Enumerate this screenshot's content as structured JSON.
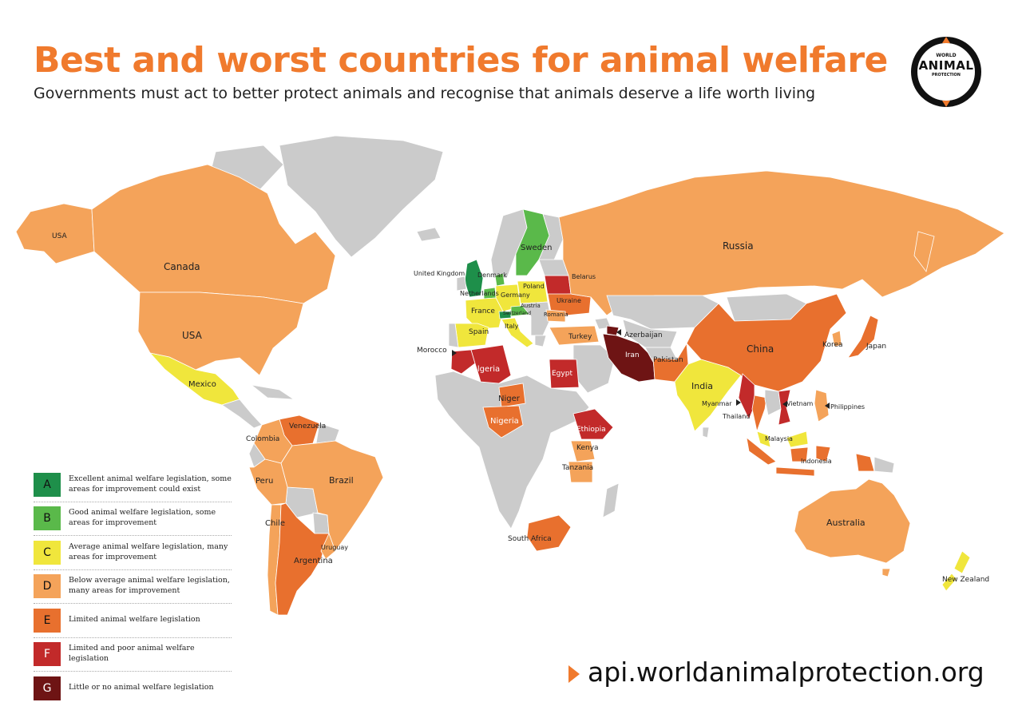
{
  "header": {
    "title": "Best and worst countries for animal welfare",
    "subtitle": "Governments must act to better protect animals and recognise that animals deserve a life worth living"
  },
  "logo": {
    "line1": "WORLD",
    "line2": "ANIMAL",
    "line3": "PROTECTION"
  },
  "grade_colors": {
    "A": "#1e8f4a",
    "B": "#5ab94a",
    "C": "#f0e63c",
    "D": "#f4a35a",
    "E": "#e8702e",
    "F": "#c22a2a",
    "G": "#6e1414",
    "none": "#cbcbcb"
  },
  "legend": [
    {
      "grade": "A",
      "text": "Excellent animal welfare legislation, some areas for improvement could exist"
    },
    {
      "grade": "B",
      "text": "Good animal welfare legislation, some areas for improvement"
    },
    {
      "grade": "C",
      "text": "Average animal welfare legislation, many areas for improvement"
    },
    {
      "grade": "D",
      "text": "Below average animal welfare legislation, many areas for improvement"
    },
    {
      "grade": "E",
      "text": "Limited animal welfare legislation"
    },
    {
      "grade": "F",
      "text": "Limited and poor animal welfare legislation"
    },
    {
      "grade": "G",
      "text": "Little or no animal welfare legislation"
    }
  ],
  "countries": [
    {
      "name": "USA",
      "grade": "D"
    },
    {
      "name": "Canada",
      "grade": "D"
    },
    {
      "name": "Mexico",
      "grade": "C"
    },
    {
      "name": "Venezuela",
      "grade": "E"
    },
    {
      "name": "Colombia",
      "grade": "D"
    },
    {
      "name": "Peru",
      "grade": "D"
    },
    {
      "name": "Brazil",
      "grade": "D"
    },
    {
      "name": "Chile",
      "grade": "D"
    },
    {
      "name": "Argentina",
      "grade": "E"
    },
    {
      "name": "Uruguay",
      "grade": "D"
    },
    {
      "name": "United Kingdom",
      "grade": "A"
    },
    {
      "name": "Denmark",
      "grade": "B"
    },
    {
      "name": "Netherlands",
      "grade": "B"
    },
    {
      "name": "Sweden",
      "grade": "B"
    },
    {
      "name": "Poland",
      "grade": "C"
    },
    {
      "name": "Belarus",
      "grade": "F"
    },
    {
      "name": "Germany",
      "grade": "C"
    },
    {
      "name": "France",
      "grade": "C"
    },
    {
      "name": "Austria",
      "grade": "B"
    },
    {
      "name": "Switzerland",
      "grade": "A"
    },
    {
      "name": "Ukraine",
      "grade": "E"
    },
    {
      "name": "Romania",
      "grade": "D"
    },
    {
      "name": "Spain",
      "grade": "C"
    },
    {
      "name": "Italy",
      "grade": "C"
    },
    {
      "name": "Turkey",
      "grade": "D"
    },
    {
      "name": "Azerbaijan",
      "grade": "G"
    },
    {
      "name": "Russia",
      "grade": "D"
    },
    {
      "name": "Morocco",
      "grade": "F"
    },
    {
      "name": "Algeria",
      "grade": "F"
    },
    {
      "name": "Egypt",
      "grade": "F"
    },
    {
      "name": "Iran",
      "grade": "G"
    },
    {
      "name": "Pakistan",
      "grade": "E"
    },
    {
      "name": "India",
      "grade": "C"
    },
    {
      "name": "China",
      "grade": "E"
    },
    {
      "name": "Korea",
      "grade": "D"
    },
    {
      "name": "Japan",
      "grade": "E"
    },
    {
      "name": "Niger",
      "grade": "E"
    },
    {
      "name": "Nigeria",
      "grade": "E"
    },
    {
      "name": "Ethiopia",
      "grade": "F"
    },
    {
      "name": "Kenya",
      "grade": "D"
    },
    {
      "name": "Tanzania",
      "grade": "D"
    },
    {
      "name": "South Africa",
      "grade": "E"
    },
    {
      "name": "Myanmar",
      "grade": "F"
    },
    {
      "name": "Thailand",
      "grade": "E"
    },
    {
      "name": "Vietnam",
      "grade": "F"
    },
    {
      "name": "Philippines",
      "grade": "D"
    },
    {
      "name": "Malaysia",
      "grade": "C"
    },
    {
      "name": "Indonesia",
      "grade": "E"
    },
    {
      "name": "Australia",
      "grade": "D"
    },
    {
      "name": "New Zealand",
      "grade": "C"
    }
  ],
  "footer": {
    "url": "api.worldanimalprotection.org"
  }
}
